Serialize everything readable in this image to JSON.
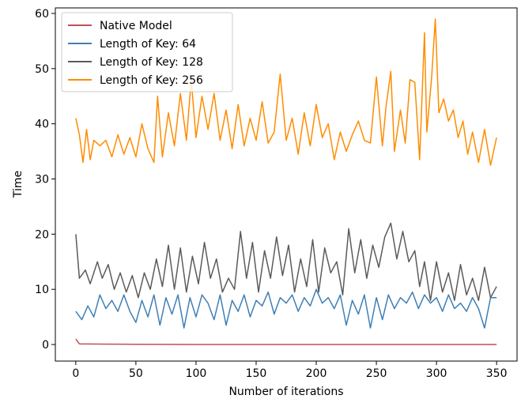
{
  "chart_data": {
    "type": "line",
    "title": "",
    "xlabel": "Number of iterations",
    "ylabel": "Time",
    "xlim": [
      -17,
      367
    ],
    "ylim": [
      -3,
      61
    ],
    "xticks": [
      0,
      50,
      100,
      150,
      200,
      250,
      300,
      350
    ],
    "yticks": [
      0,
      10,
      20,
      30,
      40,
      50,
      60
    ],
    "grid": false,
    "legend_position": "top-left",
    "series": [
      {
        "name": "Native Model",
        "color": "#c44e52",
        "points": [
          [
            0,
            1.0
          ],
          [
            3,
            0.1
          ],
          [
            50,
            0.05
          ],
          [
            100,
            0.0
          ],
          [
            150,
            0.0
          ],
          [
            200,
            0.0
          ],
          [
            250,
            0.0
          ],
          [
            300,
            0.0
          ],
          [
            350,
            0.0
          ]
        ]
      },
      {
        "name": "Length of Key: 64",
        "color": "#3f7fb5",
        "points": [
          [
            0,
            6.0
          ],
          [
            5,
            4.5
          ],
          [
            10,
            7.0
          ],
          [
            15,
            5.0
          ],
          [
            20,
            9.0
          ],
          [
            25,
            6.5
          ],
          [
            30,
            8.0
          ],
          [
            35,
            6.0
          ],
          [
            40,
            9.0
          ],
          [
            45,
            6.0
          ],
          [
            50,
            4.0
          ],
          [
            55,
            8.0
          ],
          [
            60,
            5.0
          ],
          [
            65,
            9.0
          ],
          [
            70,
            3.5
          ],
          [
            75,
            8.5
          ],
          [
            80,
            5.5
          ],
          [
            85,
            9.0
          ],
          [
            90,
            3.0
          ],
          [
            95,
            8.5
          ],
          [
            100,
            5.0
          ],
          [
            105,
            9.0
          ],
          [
            110,
            7.5
          ],
          [
            115,
            4.5
          ],
          [
            120,
            9.0
          ],
          [
            125,
            3.5
          ],
          [
            130,
            8.0
          ],
          [
            135,
            6.0
          ],
          [
            140,
            9.0
          ],
          [
            145,
            5.0
          ],
          [
            150,
            8.0
          ],
          [
            155,
            7.0
          ],
          [
            160,
            9.5
          ],
          [
            165,
            5.5
          ],
          [
            170,
            8.5
          ],
          [
            175,
            7.5
          ],
          [
            180,
            9.0
          ],
          [
            185,
            6.0
          ],
          [
            190,
            8.5
          ],
          [
            195,
            7.0
          ],
          [
            200,
            10.0
          ],
          [
            205,
            7.5
          ],
          [
            210,
            8.5
          ],
          [
            215,
            6.5
          ],
          [
            220,
            9.0
          ],
          [
            225,
            3.5
          ],
          [
            230,
            8.0
          ],
          [
            235,
            5.5
          ],
          [
            240,
            9.0
          ],
          [
            245,
            3.0
          ],
          [
            250,
            8.5
          ],
          [
            255,
            4.5
          ],
          [
            260,
            9.0
          ],
          [
            265,
            6.5
          ],
          [
            270,
            8.5
          ],
          [
            275,
            7.5
          ],
          [
            280,
            9.5
          ],
          [
            285,
            6.5
          ],
          [
            290,
            9.0
          ],
          [
            295,
            7.5
          ],
          [
            300,
            8.5
          ],
          [
            305,
            6.0
          ],
          [
            310,
            9.0
          ],
          [
            315,
            6.5
          ],
          [
            320,
            7.5
          ],
          [
            325,
            6.0
          ],
          [
            330,
            8.5
          ],
          [
            335,
            6.5
          ],
          [
            340,
            3.0
          ],
          [
            345,
            8.5
          ],
          [
            350,
            8.5
          ]
        ]
      },
      {
        "name": "Length of Key: 128",
        "color": "#5b5b5b",
        "points": [
          [
            0,
            20.0
          ],
          [
            3,
            12.0
          ],
          [
            8,
            13.5
          ],
          [
            12,
            11.0
          ],
          [
            18,
            15.0
          ],
          [
            22,
            12.0
          ],
          [
            27,
            14.5
          ],
          [
            32,
            10.0
          ],
          [
            37,
            13.0
          ],
          [
            42,
            9.5
          ],
          [
            47,
            12.5
          ],
          [
            52,
            8.5
          ],
          [
            57,
            13.0
          ],
          [
            62,
            10.0
          ],
          [
            67,
            15.5
          ],
          [
            72,
            10.5
          ],
          [
            77,
            18.0
          ],
          [
            82,
            10.0
          ],
          [
            87,
            17.5
          ],
          [
            92,
            9.5
          ],
          [
            97,
            16.0
          ],
          [
            102,
            11.0
          ],
          [
            107,
            18.5
          ],
          [
            112,
            12.0
          ],
          [
            117,
            15.5
          ],
          [
            122,
            9.5
          ],
          [
            127,
            12.0
          ],
          [
            132,
            10.0
          ],
          [
            137,
            20.5
          ],
          [
            142,
            12.0
          ],
          [
            147,
            18.5
          ],
          [
            152,
            9.5
          ],
          [
            157,
            17.0
          ],
          [
            162,
            12.0
          ],
          [
            167,
            19.5
          ],
          [
            172,
            12.5
          ],
          [
            177,
            18.0
          ],
          [
            182,
            9.5
          ],
          [
            187,
            15.5
          ],
          [
            192,
            10.5
          ],
          [
            197,
            19.0
          ],
          [
            202,
            9.5
          ],
          [
            207,
            17.5
          ],
          [
            212,
            13.0
          ],
          [
            217,
            15.0
          ],
          [
            222,
            9.0
          ],
          [
            227,
            21.0
          ],
          [
            232,
            13.0
          ],
          [
            237,
            19.0
          ],
          [
            242,
            12.0
          ],
          [
            247,
            18.0
          ],
          [
            252,
            14.0
          ],
          [
            257,
            19.5
          ],
          [
            262,
            22.0
          ],
          [
            267,
            15.5
          ],
          [
            272,
            20.5
          ],
          [
            277,
            15.0
          ],
          [
            282,
            17.0
          ],
          [
            286,
            10.5
          ],
          [
            290,
            15.0
          ],
          [
            295,
            8.0
          ],
          [
            300,
            15.0
          ],
          [
            305,
            9.5
          ],
          [
            310,
            13.0
          ],
          [
            315,
            8.0
          ],
          [
            320,
            14.5
          ],
          [
            325,
            9.0
          ],
          [
            330,
            12.0
          ],
          [
            335,
            8.0
          ],
          [
            340,
            14.0
          ],
          [
            345,
            8.5
          ],
          [
            350,
            10.5
          ]
        ]
      },
      {
        "name": "Length of Key: 256",
        "color": "#ff8c00",
        "points": [
          [
            0,
            41.0
          ],
          [
            3,
            38.0
          ],
          [
            6,
            33.0
          ],
          [
            9,
            39.0
          ],
          [
            12,
            33.5
          ],
          [
            15,
            37.0
          ],
          [
            20,
            36.0
          ],
          [
            25,
            37.0
          ],
          [
            30,
            34.0
          ],
          [
            35,
            38.0
          ],
          [
            40,
            34.5
          ],
          [
            45,
            37.5
          ],
          [
            50,
            34.0
          ],
          [
            55,
            40.0
          ],
          [
            60,
            35.5
          ],
          [
            65,
            33.0
          ],
          [
            68,
            45.0
          ],
          [
            72,
            34.0
          ],
          [
            77,
            42.0
          ],
          [
            82,
            36.0
          ],
          [
            87,
            45.5
          ],
          [
            92,
            37.0
          ],
          [
            96,
            48.0
          ],
          [
            100,
            37.5
          ],
          [
            105,
            45.0
          ],
          [
            110,
            39.0
          ],
          [
            115,
            45.5
          ],
          [
            120,
            37.0
          ],
          [
            125,
            42.5
          ],
          [
            130,
            35.5
          ],
          [
            135,
            43.5
          ],
          [
            140,
            36.0
          ],
          [
            145,
            41.0
          ],
          [
            150,
            37.0
          ],
          [
            155,
            44.0
          ],
          [
            160,
            36.5
          ],
          [
            165,
            38.5
          ],
          [
            170,
            49.0
          ],
          [
            175,
            37.0
          ],
          [
            180,
            41.0
          ],
          [
            185,
            34.5
          ],
          [
            190,
            42.0
          ],
          [
            195,
            36.0
          ],
          [
            200,
            43.5
          ],
          [
            205,
            37.5
          ],
          [
            210,
            40.0
          ],
          [
            215,
            33.5
          ],
          [
            220,
            38.5
          ],
          [
            225,
            35.0
          ],
          [
            230,
            38.0
          ],
          [
            235,
            40.5
          ],
          [
            240,
            37.0
          ],
          [
            245,
            36.5
          ],
          [
            250,
            48.5
          ],
          [
            255,
            36.0
          ],
          [
            258,
            43.0
          ],
          [
            262,
            49.5
          ],
          [
            265,
            35.0
          ],
          [
            270,
            42.5
          ],
          [
            274,
            36.5
          ],
          [
            278,
            48.0
          ],
          [
            282,
            47.5
          ],
          [
            286,
            33.5
          ],
          [
            290,
            56.5
          ],
          [
            292,
            38.5
          ],
          [
            296,
            48.5
          ],
          [
            299,
            59.0
          ],
          [
            302,
            42.0
          ],
          [
            306,
            44.5
          ],
          [
            310,
            40.5
          ],
          [
            314,
            42.5
          ],
          [
            318,
            37.5
          ],
          [
            322,
            40.5
          ],
          [
            326,
            34.5
          ],
          [
            330,
            38.5
          ],
          [
            335,
            33.0
          ],
          [
            340,
            39.0
          ],
          [
            345,
            32.5
          ],
          [
            350,
            37.5
          ]
        ]
      }
    ]
  }
}
